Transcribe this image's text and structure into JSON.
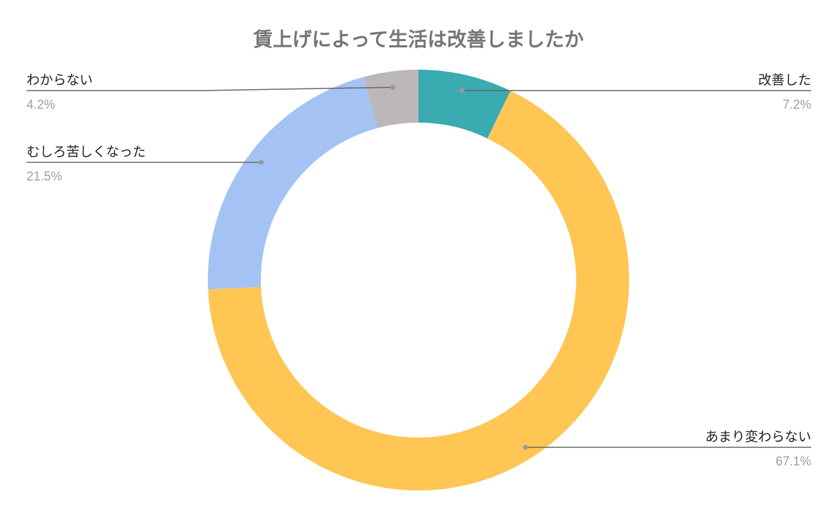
{
  "chart_data": {
    "type": "pie",
    "donut": true,
    "title": "賃上げによって生活は改善しましたか",
    "slices": [
      {
        "label": "改善した",
        "value": 7.2,
        "value_label": "7.2%",
        "color": "#3aabb0"
      },
      {
        "label": "あまり変わらない",
        "value": 67.1,
        "value_label": "67.1%",
        "color": "#ffc654"
      },
      {
        "label": "むしろ苦しくなった",
        "value": 21.5,
        "value_label": "21.5%",
        "color": "#a4c2f4"
      },
      {
        "label": "わからない",
        "value": 4.2,
        "value_label": "4.2%",
        "color": "#bbb7bb"
      }
    ],
    "legend": "none (callout labels)"
  }
}
